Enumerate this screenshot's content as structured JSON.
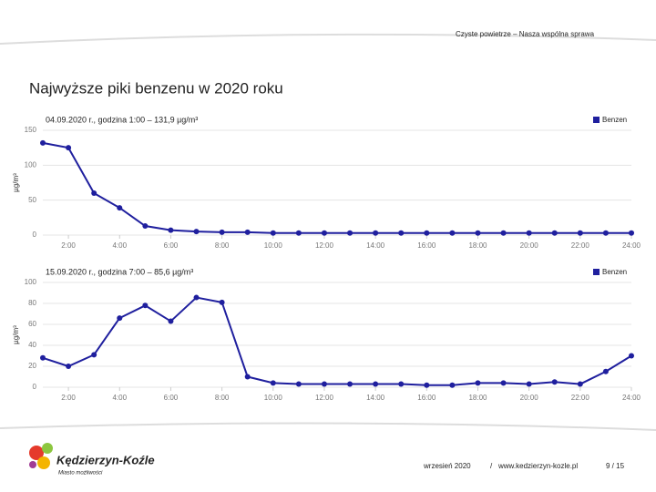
{
  "header": "Czyste powietrze – Nasza wspólna sprawa",
  "title": "Najwyższe piki benzenu w 2020 roku",
  "chart_data": [
    {
      "type": "line",
      "title": "04.09.2020 r., godzina 1:00 – 131,9 µg/m³",
      "ylabel": "µg/m³",
      "x": [
        1,
        2,
        3,
        4,
        5,
        6,
        7,
        8,
        9,
        10,
        11,
        12,
        13,
        14,
        15,
        16,
        17,
        18,
        19,
        20,
        21,
        22,
        23,
        24
      ],
      "series": [
        {
          "name": "Benzen",
          "color": "#1f1f9e",
          "values": [
            131.9,
            125,
            60,
            39,
            13,
            7,
            5,
            4,
            4,
            3,
            3,
            3,
            3,
            3,
            3,
            3,
            3,
            3,
            3,
            3,
            3,
            3,
            3,
            3
          ]
        }
      ],
      "xlim": [
        1,
        24
      ],
      "xticks": [
        {
          "value": 2,
          "label": "2:00"
        },
        {
          "value": 4,
          "label": "4:00"
        },
        {
          "value": 6,
          "label": "6:00"
        },
        {
          "value": 8,
          "label": "8:00"
        },
        {
          "value": 10,
          "label": "10:00"
        },
        {
          "value": 12,
          "label": "12:00"
        },
        {
          "value": 14,
          "label": "14:00"
        },
        {
          "value": 16,
          "label": "16:00"
        },
        {
          "value": 18,
          "label": "18:00"
        },
        {
          "value": 20,
          "label": "20:00"
        },
        {
          "value": 22,
          "label": "22:00"
        },
        {
          "value": 24,
          "label": "24:00"
        }
      ],
      "ylim": [
        0,
        150
      ],
      "yticks": [
        0,
        50,
        100,
        150
      ],
      "grid": true,
      "legend": "top-right"
    },
    {
      "type": "line",
      "title": "15.09.2020 r., godzina 7:00 – 85,6 µg/m³",
      "ylabel": "µg/m³",
      "x": [
        1,
        2,
        3,
        4,
        5,
        6,
        7,
        8,
        9,
        10,
        11,
        12,
        13,
        14,
        15,
        16,
        17,
        18,
        19,
        20,
        21,
        22,
        23,
        24
      ],
      "series": [
        {
          "name": "Benzen",
          "color": "#1f1f9e",
          "values": [
            28,
            20,
            31,
            66,
            78,
            63,
            85.6,
            81,
            10,
            4,
            3,
            3,
            3,
            3,
            3,
            2,
            2,
            4,
            4,
            3,
            5,
            3,
            15,
            30
          ]
        }
      ],
      "xlim": [
        1,
        24
      ],
      "xticks": [
        {
          "value": 2,
          "label": "2:00"
        },
        {
          "value": 4,
          "label": "4:00"
        },
        {
          "value": 6,
          "label": "6:00"
        },
        {
          "value": 8,
          "label": "8:00"
        },
        {
          "value": 10,
          "label": "10:00"
        },
        {
          "value": 12,
          "label": "12:00"
        },
        {
          "value": 14,
          "label": "14:00"
        },
        {
          "value": 16,
          "label": "16:00"
        },
        {
          "value": 18,
          "label": "18:00"
        },
        {
          "value": 20,
          "label": "20:00"
        },
        {
          "value": 22,
          "label": "22:00"
        },
        {
          "value": 24,
          "label": "24:00"
        }
      ],
      "ylim": [
        0,
        100
      ],
      "yticks": [
        0,
        20,
        40,
        60,
        80,
        100
      ],
      "grid": true,
      "legend": "top-right"
    }
  ],
  "footer": {
    "logo": "Kędzierzyn-Koźle",
    "slogan": "Miasto możliwości",
    "date": "wrzesień 2020",
    "sep": "/",
    "url": "www.kedzierzyn-kozle.pl",
    "page": "9 / 15"
  }
}
